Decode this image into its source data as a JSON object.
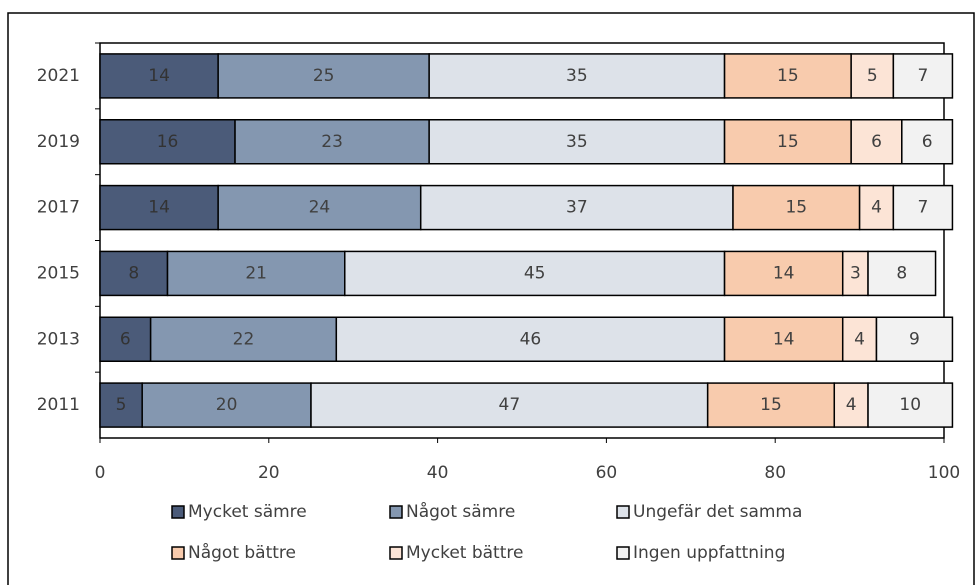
{
  "chart_data": {
    "type": "stacked-bar-horizontal",
    "categories": [
      "2021",
      "2019",
      "2017",
      "2015",
      "2013",
      "2011"
    ],
    "series": [
      {
        "name": "Mycket sämre",
        "color": "#4b5b79",
        "values": [
          14,
          16,
          14,
          8,
          6,
          5
        ]
      },
      {
        "name": "Något sämre",
        "color": "#8497b0",
        "values": [
          25,
          23,
          24,
          21,
          22,
          20
        ]
      },
      {
        "name": "Ungefär det samma",
        "color": "#dde2e9",
        "values": [
          35,
          35,
          37,
          45,
          46,
          47
        ]
      },
      {
        "name": "Något bättre",
        "color": "#f8cbad",
        "values": [
          15,
          15,
          15,
          14,
          14,
          15
        ]
      },
      {
        "name": "Mycket bättre",
        "color": "#fce4d6",
        "values": [
          5,
          6,
          4,
          3,
          4,
          4
        ]
      },
      {
        "name": "Ingen uppfattning",
        "color": "#f2f2f2",
        "values": [
          7,
          6,
          7,
          8,
          9,
          10
        ]
      }
    ],
    "xlim": [
      0,
      100
    ],
    "xticks": [
      0,
      20,
      40,
      60,
      80,
      100
    ],
    "legend": "bottom"
  }
}
